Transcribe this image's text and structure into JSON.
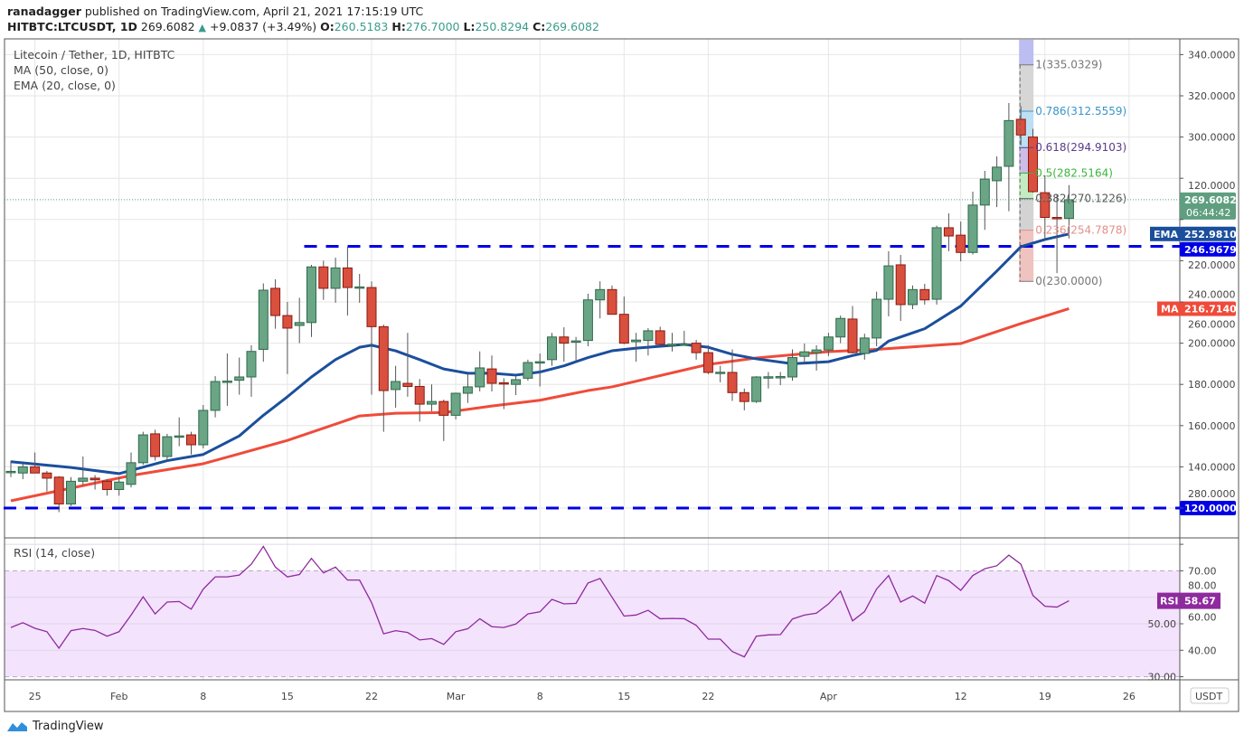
{
  "header": {
    "author": "ranadagger",
    "published": " published on TradingView.com, April 21, 2021 17:15:19 UTC",
    "symbol": "HITBTC:LTCUSDT, 1D",
    "last": "269.6082",
    "change": "+9.0837 (+3.49%)",
    "o_label": "O:",
    "o": "260.5183",
    "h_label": "H:",
    "h": "276.7000",
    "l_label": "L:",
    "l": "250.8294",
    "c_label": "C:",
    "c": "269.6082"
  },
  "legend": {
    "title": "Litecoin / Tether, 1D, HITBTC",
    "ma": "MA (50, close, 0)",
    "ema": "EMA (20, close, 0)"
  },
  "footer": {
    "logo": "TradingView"
  },
  "colors": {
    "up": "#6aa586",
    "down": "#d9503f",
    "ema": "#1b4f9c",
    "ma": "#ef4b3a",
    "hline": "#0000e6",
    "rsi": "#8e2a9e",
    "last_price": "#5f9f80"
  },
  "chart_data": [
    {
      "type": "candlestick",
      "currency_badge": "USDT",
      "ylim": [
        110,
        345
      ],
      "y_ticks": [
        "120.0000",
        "140.0000",
        "160.0000",
        "180.0000",
        "200.0000",
        "220.0000",
        "240.0000",
        "260.0000",
        "280.0000",
        "300.0000",
        "320.0000",
        "340.0000"
      ],
      "x_ticks": [
        {
          "date": "2021-01-25",
          "label": "25"
        },
        {
          "date": "2021-02-01",
          "label": "Feb"
        },
        {
          "date": "2021-02-08",
          "label": "8"
        },
        {
          "date": "2021-02-15",
          "label": "15"
        },
        {
          "date": "2021-02-22",
          "label": "22"
        },
        {
          "date": "2021-03-01",
          "label": "Mar"
        },
        {
          "date": "2021-03-08",
          "label": "8"
        },
        {
          "date": "2021-03-15",
          "label": "15"
        },
        {
          "date": "2021-03-22",
          "label": "22"
        },
        {
          "date": "2021-04-01",
          "label": "Apr"
        },
        {
          "date": "2021-04-12",
          "label": "12"
        },
        {
          "date": "2021-04-19",
          "label": "19"
        },
        {
          "date": "2021-04-26",
          "label": "26"
        }
      ],
      "candles_columns": [
        "date",
        "open",
        "high",
        "low",
        "close"
      ],
      "candles": [
        [
          "2021-01-23",
          137.5,
          143,
          135,
          137.8
        ],
        [
          "2021-01-24",
          137,
          141.5,
          134,
          140
        ],
        [
          "2021-01-25",
          140,
          147,
          137,
          137
        ],
        [
          "2021-01-26",
          137,
          138,
          128,
          134.5
        ],
        [
          "2021-01-27",
          135,
          135.5,
          118,
          122
        ],
        [
          "2021-01-28",
          122,
          135,
          121,
          133
        ],
        [
          "2021-01-29",
          133,
          145,
          131,
          134.5
        ],
        [
          "2021-01-30",
          134.5,
          136,
          129,
          133.7
        ],
        [
          "2021-01-31",
          133,
          134,
          126,
          129
        ],
        [
          "2021-02-01",
          129,
          135,
          126,
          132.6
        ],
        [
          "2021-02-02",
          131.5,
          147,
          130,
          142
        ],
        [
          "2021-02-03",
          142,
          157,
          141,
          155.5
        ],
        [
          "2021-02-04",
          156,
          158,
          143,
          145
        ],
        [
          "2021-02-05",
          145,
          156,
          143,
          154.6
        ],
        [
          "2021-02-06",
          154.6,
          164,
          150,
          155
        ],
        [
          "2021-02-07",
          155.5,
          157,
          146,
          150.7
        ],
        [
          "2021-02-08",
          150.7,
          170,
          149,
          167.4
        ],
        [
          "2021-02-09",
          167.4,
          184,
          164,
          181.4
        ],
        [
          "2021-02-10",
          181.4,
          195,
          169.6,
          181.6
        ],
        [
          "2021-02-11",
          182,
          193,
          175,
          183.6
        ],
        [
          "2021-02-12",
          183.6,
          199,
          174,
          196
        ],
        [
          "2021-02-13",
          197,
          229,
          191,
          225.7
        ],
        [
          "2021-02-14",
          226.6,
          231,
          207,
          213.4
        ],
        [
          "2021-02-15",
          213.4,
          220,
          185,
          207.3
        ],
        [
          "2021-02-16",
          208.6,
          222,
          200,
          210
        ],
        [
          "2021-02-17",
          210,
          238,
          203,
          237
        ],
        [
          "2021-02-18",
          237,
          240,
          221,
          226.6
        ],
        [
          "2021-02-19",
          226.6,
          241.5,
          219.6,
          236.5
        ],
        [
          "2021-02-20",
          236.5,
          246.8,
          213.4,
          227
        ],
        [
          "2021-02-21",
          227,
          233.6,
          219.6,
          227.3
        ],
        [
          "2021-02-22",
          227,
          230,
          175,
          208
        ],
        [
          "2021-02-23",
          208,
          209,
          157,
          177
        ],
        [
          "2021-02-24",
          177.5,
          189,
          168.7,
          181.4
        ],
        [
          "2021-02-25",
          180.5,
          205,
          174,
          179
        ],
        [
          "2021-02-26",
          179,
          182.6,
          162,
          170.4
        ],
        [
          "2021-02-27",
          170.4,
          180,
          167,
          171.7
        ],
        [
          "2021-02-28",
          171.7,
          172.6,
          152.5,
          165
        ],
        [
          "2021-03-01",
          165,
          176,
          163,
          175.7
        ],
        [
          "2021-03-02",
          175.7,
          185,
          171,
          178.8
        ],
        [
          "2021-03-03",
          178.8,
          196,
          176.6,
          188
        ],
        [
          "2021-03-04",
          187.5,
          194,
          176.6,
          180.5
        ],
        [
          "2021-03-05",
          180.8,
          183,
          168,
          180.5
        ],
        [
          "2021-03-06",
          180,
          184,
          174.8,
          182.3
        ],
        [
          "2021-03-07",
          183,
          192,
          181.8,
          190.6
        ],
        [
          "2021-03-08",
          190.6,
          195,
          179,
          191
        ],
        [
          "2021-03-09",
          192,
          205,
          189,
          203
        ],
        [
          "2021-03-10",
          203,
          207.7,
          191,
          200
        ],
        [
          "2021-03-11",
          201,
          203,
          191,
          201.1
        ],
        [
          "2021-03-12",
          201.3,
          224,
          198.5,
          221
        ],
        [
          "2021-03-13",
          221,
          230,
          212,
          226
        ],
        [
          "2021-03-14",
          226,
          228,
          213.9,
          214
        ],
        [
          "2021-03-15",
          214,
          222.6,
          199.5,
          200
        ],
        [
          "2021-03-16",
          200.7,
          205,
          191,
          201.5
        ],
        [
          "2021-03-17",
          201.3,
          207.3,
          194,
          206
        ],
        [
          "2021-03-18",
          206,
          208,
          199,
          199.4
        ],
        [
          "2021-03-19",
          199.4,
          205,
          196,
          199.5
        ],
        [
          "2021-03-20",
          199.4,
          206,
          199,
          199.6
        ],
        [
          "2021-03-21",
          200,
          201.6,
          192,
          195.4
        ],
        [
          "2021-03-22",
          195.4,
          199,
          185,
          185.8
        ],
        [
          "2021-03-23",
          185.8,
          189,
          181,
          185.9
        ],
        [
          "2021-03-24",
          185.8,
          197,
          172,
          176
        ],
        [
          "2021-03-25",
          176,
          178,
          167.4,
          171.7
        ],
        [
          "2021-03-26",
          171.7,
          184,
          171,
          183.6
        ],
        [
          "2021-03-27",
          183.6,
          186,
          178,
          183.7
        ],
        [
          "2021-03-28",
          183.6,
          186,
          179.6,
          183.8
        ],
        [
          "2021-03-29",
          183.6,
          197,
          181.8,
          193
        ],
        [
          "2021-03-30",
          193.6,
          199.8,
          190,
          195.8
        ],
        [
          "2021-03-31",
          195.4,
          199,
          186.7,
          196.7
        ],
        [
          "2021-04-01",
          196.7,
          205,
          193.7,
          203
        ],
        [
          "2021-04-02",
          203,
          213.4,
          200,
          212
        ],
        [
          "2021-04-03",
          211.7,
          218,
          195,
          195.4
        ],
        [
          "2021-04-04",
          195,
          204.6,
          192,
          202.5
        ],
        [
          "2021-04-05",
          202.5,
          225,
          198.5,
          221.3
        ],
        [
          "2021-04-06",
          221.3,
          244.6,
          213,
          237.5
        ],
        [
          "2021-04-07",
          238,
          242.8,
          210.8,
          218.7
        ],
        [
          "2021-04-08",
          218.7,
          228,
          216.5,
          226
        ],
        [
          "2021-04-09",
          226,
          228.8,
          218.7,
          221
        ],
        [
          "2021-04-10",
          221.3,
          257,
          218.7,
          256
        ],
        [
          "2021-04-11",
          256,
          263,
          244.6,
          252
        ],
        [
          "2021-04-12",
          252.4,
          259,
          239.7,
          244
        ],
        [
          "2021-04-13",
          244,
          273.5,
          243,
          267
        ],
        [
          "2021-04-14",
          267,
          283.6,
          255,
          279.6
        ],
        [
          "2021-04-15",
          278.8,
          290.6,
          266,
          285.4
        ],
        [
          "2021-04-16",
          285.8,
          316.5,
          264,
          308
        ],
        [
          "2021-04-17",
          308.6,
          315,
          296,
          301
        ],
        [
          "2021-04-18",
          300,
          304,
          273,
          273.5
        ],
        [
          "2021-04-19",
          273,
          281.4,
          250,
          261
        ],
        [
          "2021-04-20",
          261,
          272,
          234,
          260.5
        ],
        [
          "2021-04-21",
          260.5183,
          276.7,
          250.8294,
          269.6082
        ]
      ],
      "ema20": {
        "label": "EMA",
        "last": "252.9810",
        "points": [
          [
            "2021-01-23",
            142.5
          ],
          [
            "2021-01-28",
            139.7
          ],
          [
            "2021-02-01",
            136.7
          ],
          [
            "2021-02-05",
            143
          ],
          [
            "2021-02-08",
            146
          ],
          [
            "2021-02-11",
            155
          ],
          [
            "2021-02-13",
            165
          ],
          [
            "2021-02-15",
            174
          ],
          [
            "2021-02-17",
            183.6
          ],
          [
            "2021-02-19",
            192
          ],
          [
            "2021-02-21",
            198
          ],
          [
            "2021-02-22",
            199
          ],
          [
            "2021-02-24",
            196.3
          ],
          [
            "2021-02-26",
            192
          ],
          [
            "2021-02-28",
            187.5
          ],
          [
            "2021-03-02",
            185.4
          ],
          [
            "2021-03-04",
            185.4
          ],
          [
            "2021-03-06",
            184.5
          ],
          [
            "2021-03-08",
            186
          ],
          [
            "2021-03-10",
            189
          ],
          [
            "2021-03-12",
            193
          ],
          [
            "2021-03-14",
            196.3
          ],
          [
            "2021-03-16",
            197.6
          ],
          [
            "2021-03-20",
            199.4
          ],
          [
            "2021-03-22",
            198
          ],
          [
            "2021-03-24",
            194.6
          ],
          [
            "2021-03-26",
            192.4
          ],
          [
            "2021-03-29",
            190
          ],
          [
            "2021-04-01",
            191
          ],
          [
            "2021-04-03",
            194
          ],
          [
            "2021-04-05",
            196.5
          ],
          [
            "2021-04-06",
            201
          ],
          [
            "2021-04-09",
            207
          ],
          [
            "2021-04-12",
            218
          ],
          [
            "2021-04-15",
            235
          ],
          [
            "2021-04-17",
            246.8
          ],
          [
            "2021-04-19",
            250.3
          ],
          [
            "2021-04-21",
            252.981
          ]
        ]
      },
      "ma50": {
        "label": "MA",
        "last": "216.7140",
        "points": [
          [
            "2021-01-23",
            123.5
          ],
          [
            "2021-02-02",
            135.8
          ],
          [
            "2021-02-08",
            141.5
          ],
          [
            "2021-02-15",
            152.8
          ],
          [
            "2021-02-21",
            164.7
          ],
          [
            "2021-02-24",
            166
          ],
          [
            "2021-02-28",
            166.3
          ],
          [
            "2021-03-04",
            169.5
          ],
          [
            "2021-03-08",
            172.3
          ],
          [
            "2021-03-12",
            177
          ],
          [
            "2021-03-14",
            178.8
          ],
          [
            "2021-03-22",
            189.7
          ],
          [
            "2021-03-26",
            192.8
          ],
          [
            "2021-04-01",
            195.9
          ],
          [
            "2021-04-05",
            197
          ],
          [
            "2021-04-12",
            199.8
          ],
          [
            "2021-04-17",
            209.5
          ],
          [
            "2021-04-21",
            216.714
          ]
        ]
      },
      "horizontal_lines": [
        {
          "value": 246.9679,
          "label": "246.9679",
          "from": "2021-02-17",
          "style": "dashed"
        },
        {
          "value": 120,
          "label": "120.0000",
          "from": "2021-01-23",
          "style": "dashed"
        }
      ],
      "last_price": {
        "value": 269.6082,
        "label": "269.6082",
        "countdown": "06:44:42"
      },
      "fibonacci": {
        "date": "2021-04-17",
        "levels": [
          {
            "ratio": "1",
            "value": 335.0329,
            "text": "1(335.0329)",
            "color": "#777777",
            "band": "#d6d6d6"
          },
          {
            "ratio": "0.786",
            "value": 312.5559,
            "text": "0.786(312.5559)",
            "color": "#3a95c9",
            "band": "#bcdff3"
          },
          {
            "ratio": "0.618",
            "value": 294.9103,
            "text": "0.618(294.9103)",
            "color": "#5a3b8a",
            "band": "#cdbde8"
          },
          {
            "ratio": "0.5",
            "value": 282.5164,
            "text": "0.5(282.5164)",
            "color": "#3cb53c",
            "band": "#c3ecc3"
          },
          {
            "ratio": "0.382",
            "value": 270.1226,
            "text": "0.382(270.1226)",
            "color": "#555555",
            "band": "#d3d3d3"
          },
          {
            "ratio": "0.236",
            "value": 254.7878,
            "text": "0.236(254.7878)",
            "color": "#e2908a",
            "band": "#efc3c0"
          },
          {
            "ratio": "0",
            "value": 230.0,
            "text": "0(230.0000)",
            "color": "#777777",
            "band": null
          }
        ]
      }
    },
    {
      "type": "line",
      "title": "RSI (14, close)",
      "ylim": [
        27,
        82
      ],
      "y_ticks": [
        "80.00",
        "70.00",
        "60.00",
        "50.00",
        "40.00",
        "30.00"
      ],
      "band": [
        30,
        70
      ],
      "last": {
        "label": "RSI",
        "value": "58.67"
      },
      "values": [
        48.6,
        50.4,
        48.3,
        47,
        40.8,
        47.4,
        48.2,
        47.5,
        45.3,
        47,
        53.3,
        60.2,
        53.7,
        58.2,
        58.4,
        55.5,
        63.1,
        67.7,
        67.7,
        68.4,
        72.5,
        79.2,
        71.4,
        67.7,
        68.6,
        74.7,
        69.2,
        71.4,
        66.5,
        66.5,
        58,
        46.2,
        47.4,
        46.7,
        43.9,
        44.4,
        42.2,
        47,
        48.1,
        51.9,
        48.9,
        48.6,
        49.9,
        53.7,
        54.5,
        59.2,
        57.5,
        57.7,
        65.4,
        67.1,
        60,
        52.9,
        53.3,
        55.1,
        51.9,
        52,
        51.9,
        49.4,
        44.2,
        44.2,
        39.5,
        37.5,
        45.3,
        45.8,
        45.9,
        51.8,
        53.3,
        54,
        57.5,
        62.3,
        51.1,
        54.6,
        63.1,
        68.2,
        58.2,
        60.5,
        57.8,
        68.2,
        66.3,
        62.6,
        68.2,
        70.8,
        71.9,
        75.9,
        72.5,
        60.7,
        56.6,
        56.3,
        58.67
      ]
    }
  ]
}
